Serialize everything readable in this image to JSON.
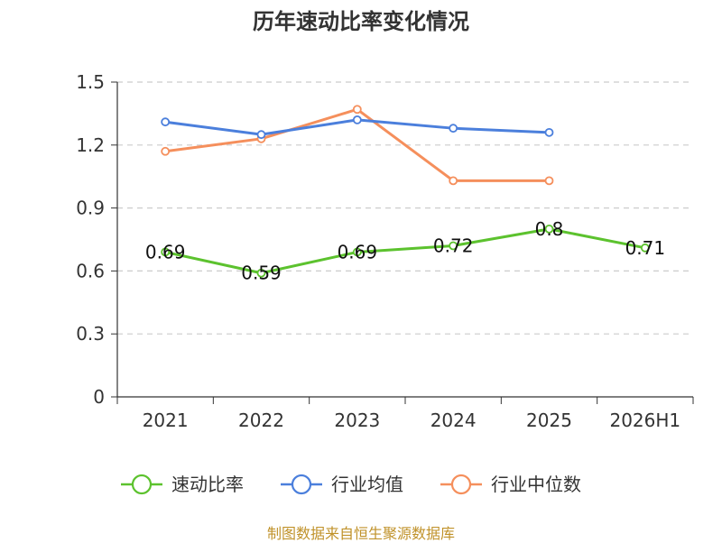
{
  "chart_data": {
    "type": "line",
    "title": "历年速动比率变化情况",
    "categories": [
      "2021",
      "2022",
      "2023",
      "2024",
      "2025",
      "2026H1"
    ],
    "yticks": [
      "0",
      "0.3",
      "0.6",
      "0.9",
      "1.2",
      "1.5"
    ],
    "ylim": [
      0,
      1.5
    ],
    "grid": true,
    "legend_position": "bottom",
    "series": [
      {
        "name": "速动比率",
        "color": "#5cc22e",
        "values": [
          0.69,
          0.59,
          0.69,
          0.72,
          0.8,
          0.71
        ],
        "labels": [
          "0.69",
          "0.59",
          "0.69",
          "0.72",
          "0.8",
          "0.71"
        ]
      },
      {
        "name": "行业均值",
        "color": "#4b7fdc",
        "values": [
          1.31,
          1.25,
          1.32,
          1.28,
          1.26,
          null
        ]
      },
      {
        "name": "行业中位数",
        "color": "#f58f5c",
        "values": [
          1.17,
          1.23,
          1.37,
          1.03,
          1.03,
          null
        ]
      }
    ]
  },
  "source": "制图数据来自恒生聚源数据库"
}
